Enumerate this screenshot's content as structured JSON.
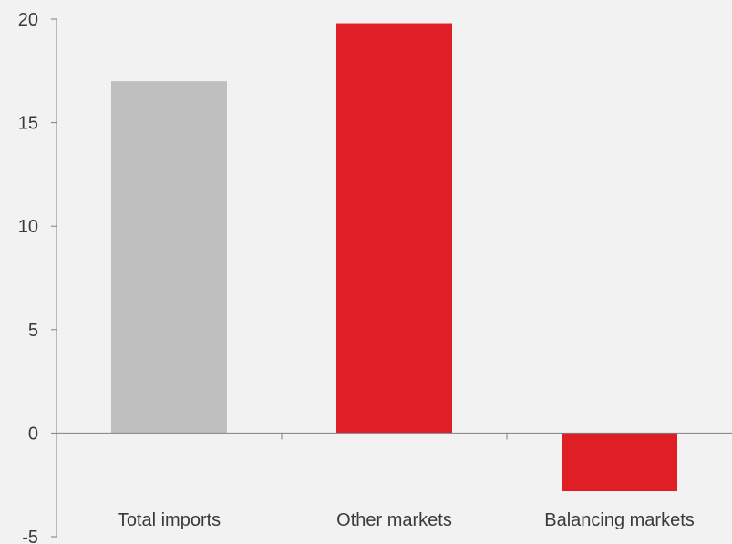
{
  "chart_data": {
    "type": "bar",
    "categories": [
      "Total imports",
      "Other markets",
      "Balancing markets"
    ],
    "values": [
      17.0,
      19.8,
      -2.8
    ],
    "colors": [
      "#bfbfbf",
      "#e01e25",
      "#e01e25"
    ],
    "title": "",
    "xlabel": "",
    "ylabel": "",
    "ylim": [
      -5,
      20
    ],
    "yticks": [
      "20",
      "15",
      "10",
      "5",
      "0",
      "-5"
    ],
    "ytick_values": [
      20,
      15,
      10,
      5,
      0,
      -5
    ],
    "grid": false,
    "legend": "none"
  }
}
